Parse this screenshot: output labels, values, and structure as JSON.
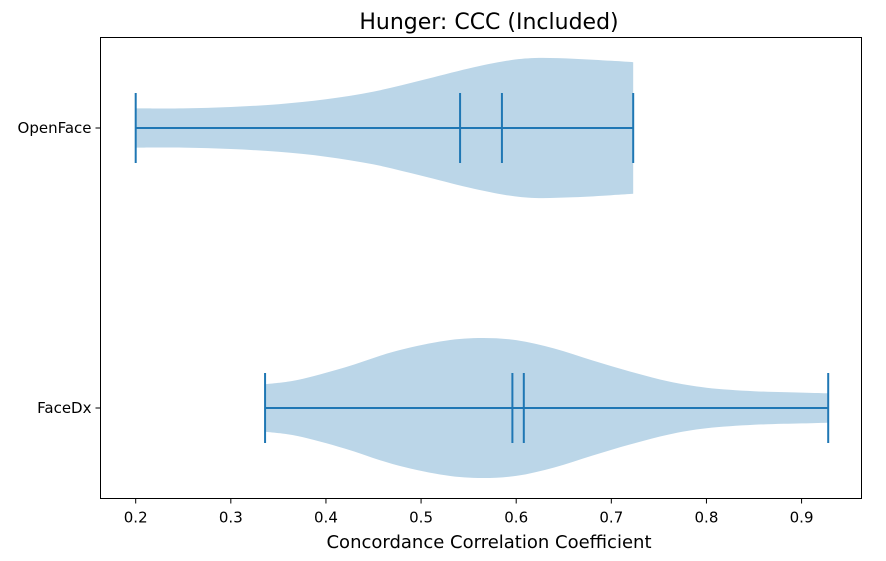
{
  "chart_data": {
    "type": "violin",
    "orientation": "horizontal",
    "title": "Hunger: CCC (Included)",
    "xlabel": "Concordance Correlation Coefficient",
    "ylabel": "",
    "xlim": [
      0.163,
      0.963
    ],
    "xticks": [
      0.2,
      0.3,
      0.4,
      0.5,
      0.6,
      0.7,
      0.8,
      0.9
    ],
    "xtick_labels": [
      "0.2",
      "0.3",
      "0.4",
      "0.5",
      "0.6",
      "0.7",
      "0.8",
      "0.9"
    ],
    "categories": [
      "FaceDx",
      "OpenFace"
    ],
    "grid": false,
    "colors": {
      "fill": "#1f77b4",
      "fill_opacity": 0.3,
      "line": "#1f77b4"
    },
    "series": [
      {
        "name": "FaceDx",
        "min": 0.336,
        "max": 0.928,
        "mean": 0.608,
        "median": 0.596,
        "density": [
          [
            0.336,
            0.34
          ],
          [
            0.37,
            0.4
          ],
          [
            0.42,
            0.58
          ],
          [
            0.47,
            0.8
          ],
          [
            0.52,
            0.95
          ],
          [
            0.56,
            1.0
          ],
          [
            0.6,
            0.97
          ],
          [
            0.64,
            0.85
          ],
          [
            0.68,
            0.68
          ],
          [
            0.72,
            0.52
          ],
          [
            0.76,
            0.38
          ],
          [
            0.8,
            0.29
          ],
          [
            0.85,
            0.24
          ],
          [
            0.9,
            0.22
          ],
          [
            0.928,
            0.21
          ]
        ]
      },
      {
        "name": "OpenFace",
        "min": 0.2,
        "max": 0.723,
        "mean": 0.541,
        "median": 0.585,
        "density": [
          [
            0.2,
            0.28
          ],
          [
            0.25,
            0.28
          ],
          [
            0.3,
            0.3
          ],
          [
            0.35,
            0.34
          ],
          [
            0.4,
            0.41
          ],
          [
            0.45,
            0.52
          ],
          [
            0.5,
            0.68
          ],
          [
            0.55,
            0.85
          ],
          [
            0.59,
            0.96
          ],
          [
            0.62,
            1.0
          ],
          [
            0.66,
            0.99
          ],
          [
            0.7,
            0.96
          ],
          [
            0.723,
            0.94
          ]
        ]
      }
    ]
  }
}
